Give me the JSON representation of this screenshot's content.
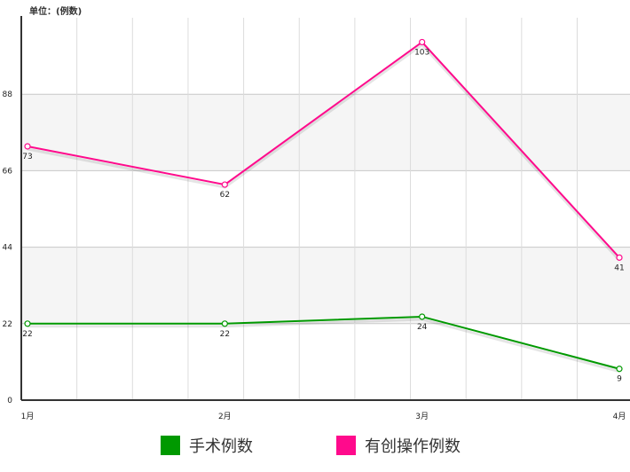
{
  "chart_data": {
    "type": "line",
    "unit_label": "单位：(例数)",
    "categories": [
      "1月",
      "2月",
      "3月",
      "4月"
    ],
    "y_ticks": [
      0,
      22,
      44,
      66,
      88
    ],
    "ylim": [
      0,
      110
    ],
    "grid": true,
    "legend_position": "bottom",
    "series": [
      {
        "name": "手术例数",
        "color": "#009900",
        "values": [
          22,
          22,
          24,
          9
        ]
      },
      {
        "name": "有创操作例数",
        "color": "#ff0a8c",
        "values": [
          73,
          62,
          103,
          41
        ]
      }
    ]
  }
}
